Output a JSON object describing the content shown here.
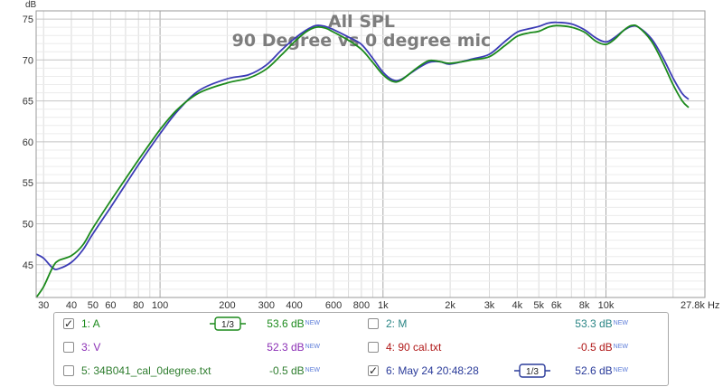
{
  "chart_data": {
    "type": "line",
    "title": "All SPL",
    "subtitle": "90 Degree vs 0 degree mic",
    "ylabel": "dB",
    "xunit": "Hz",
    "xscale": "log",
    "xlim": [
      27.8,
      27800
    ],
    "ylim": [
      41,
      76
    ],
    "grid": true,
    "x_ticks": [
      {
        "value": 30,
        "label": "30"
      },
      {
        "value": 40,
        "label": "40"
      },
      {
        "value": 50,
        "label": "50"
      },
      {
        "value": 60,
        "label": "60"
      },
      {
        "value": 80,
        "label": "80"
      },
      {
        "value": 100,
        "label": "100"
      },
      {
        "value": 200,
        "label": "200"
      },
      {
        "value": 300,
        "label": "300"
      },
      {
        "value": 400,
        "label": "400"
      },
      {
        "value": 600,
        "label": "600"
      },
      {
        "value": 800,
        "label": "800"
      },
      {
        "value": 1000,
        "label": "1k"
      },
      {
        "value": 2000,
        "label": "2k"
      },
      {
        "value": 3000,
        "label": "3k"
      },
      {
        "value": 4000,
        "label": "4k"
      },
      {
        "value": 5000,
        "label": "5k"
      },
      {
        "value": 6000,
        "label": "6k"
      },
      {
        "value": 8000,
        "label": "8k"
      },
      {
        "value": 10000,
        "label": "10k"
      },
      {
        "value": 27800,
        "label": "27.8k Hz"
      }
    ],
    "y_ticks": [
      {
        "value": 45,
        "label": "45"
      },
      {
        "value": 50,
        "label": "50"
      },
      {
        "value": 55,
        "label": "55"
      },
      {
        "value": 60,
        "label": "60"
      },
      {
        "value": 65,
        "label": "65"
      },
      {
        "value": 70,
        "label": "70"
      },
      {
        "value": 75,
        "label": "75"
      }
    ],
    "series": [
      {
        "name": "May 24 20:48:28",
        "color": "#3b3bb5",
        "points": [
          [
            27.8,
            46.3
          ],
          [
            30,
            45.8
          ],
          [
            33,
            44.6
          ],
          [
            35,
            44.5
          ],
          [
            40,
            45.3
          ],
          [
            45,
            46.8
          ],
          [
            50,
            48.8
          ],
          [
            60,
            52.0
          ],
          [
            70,
            54.8
          ],
          [
            80,
            57.2
          ],
          [
            100,
            61.0
          ],
          [
            120,
            63.8
          ],
          [
            150,
            66.3
          ],
          [
            200,
            67.7
          ],
          [
            250,
            68.2
          ],
          [
            300,
            69.4
          ],
          [
            350,
            71.2
          ],
          [
            400,
            72.6
          ],
          [
            450,
            73.6
          ],
          [
            500,
            74.2
          ],
          [
            550,
            74.1
          ],
          [
            600,
            73.7
          ],
          [
            700,
            72.8
          ],
          [
            800,
            71.9
          ],
          [
            900,
            70.2
          ],
          [
            1000,
            68.5
          ],
          [
            1100,
            67.6
          ],
          [
            1200,
            67.6
          ],
          [
            1400,
            68.8
          ],
          [
            1600,
            69.7
          ],
          [
            1800,
            69.8
          ],
          [
            2000,
            69.5
          ],
          [
            2500,
            70.1
          ],
          [
            3000,
            70.7
          ],
          [
            3500,
            72.2
          ],
          [
            4000,
            73.4
          ],
          [
            4500,
            73.8
          ],
          [
            5000,
            74.1
          ],
          [
            5500,
            74.5
          ],
          [
            6000,
            74.6
          ],
          [
            7000,
            74.4
          ],
          [
            8000,
            73.7
          ],
          [
            9000,
            72.7
          ],
          [
            10000,
            72.2
          ],
          [
            11000,
            72.8
          ],
          [
            12000,
            73.6
          ],
          [
            13000,
            74.1
          ],
          [
            14000,
            74.0
          ],
          [
            16000,
            72.6
          ],
          [
            18000,
            70.3
          ],
          [
            20000,
            67.8
          ],
          [
            22000,
            65.9
          ],
          [
            23500,
            65.2
          ]
        ]
      },
      {
        "name": "A",
        "color": "#1c8a1c",
        "points": [
          [
            27.8,
            41.0
          ],
          [
            30,
            42.3
          ],
          [
            33,
            44.7
          ],
          [
            35,
            45.5
          ],
          [
            40,
            46.1
          ],
          [
            45,
            47.4
          ],
          [
            50,
            49.5
          ],
          [
            60,
            52.8
          ],
          [
            70,
            55.5
          ],
          [
            80,
            57.8
          ],
          [
            100,
            61.5
          ],
          [
            120,
            64.0
          ],
          [
            150,
            66.0
          ],
          [
            200,
            67.2
          ],
          [
            250,
            67.8
          ],
          [
            300,
            68.9
          ],
          [
            350,
            70.6
          ],
          [
            400,
            72.2
          ],
          [
            450,
            73.4
          ],
          [
            500,
            74.0
          ],
          [
            550,
            73.9
          ],
          [
            600,
            73.4
          ],
          [
            700,
            72.4
          ],
          [
            800,
            71.3
          ],
          [
            900,
            69.7
          ],
          [
            1000,
            68.2
          ],
          [
            1100,
            67.4
          ],
          [
            1200,
            67.5
          ],
          [
            1400,
            68.9
          ],
          [
            1600,
            69.9
          ],
          [
            1800,
            69.8
          ],
          [
            2000,
            69.6
          ],
          [
            2500,
            70.0
          ],
          [
            3000,
            70.4
          ],
          [
            3500,
            71.7
          ],
          [
            4000,
            72.9
          ],
          [
            4500,
            73.3
          ],
          [
            5000,
            73.5
          ],
          [
            5500,
            74.0
          ],
          [
            6000,
            74.2
          ],
          [
            7000,
            74.0
          ],
          [
            8000,
            73.4
          ],
          [
            9000,
            72.3
          ],
          [
            10000,
            71.9
          ],
          [
            11000,
            72.6
          ],
          [
            12000,
            73.6
          ],
          [
            13000,
            74.2
          ],
          [
            14000,
            74.0
          ],
          [
            16000,
            72.3
          ],
          [
            18000,
            69.7
          ],
          [
            20000,
            67.0
          ],
          [
            22000,
            65.0
          ],
          [
            23500,
            64.2
          ]
        ]
      }
    ]
  },
  "legend": {
    "entries": [
      {
        "index": "1: A",
        "checked": true,
        "has_smoothing": true,
        "smoothing": "1/3",
        "value": "53.6 dB",
        "badge": "NEW",
        "color": "#1c8a1c"
      },
      {
        "index": "2: M",
        "checked": false,
        "has_smoothing": false,
        "smoothing": "",
        "value": "53.3 dB",
        "badge": "NEW",
        "color": "#2a8585"
      },
      {
        "index": "3: V",
        "checked": false,
        "has_smoothing": false,
        "smoothing": "",
        "value": "52.3 dB",
        "badge": "NEW",
        "color": "#8b2fb5"
      },
      {
        "index": "4: 90 cal.txt",
        "checked": false,
        "has_smoothing": false,
        "smoothing": "",
        "value": "-0.5 dB",
        "badge": "NEW",
        "color": "#b01818"
      },
      {
        "index": "5: 34B041_cal_0degree.txt",
        "checked": false,
        "has_smoothing": false,
        "smoothing": "",
        "value": "-0.5 dB",
        "badge": "NEW",
        "color": "#2e7d2e"
      },
      {
        "index": "6: May 24 20:48:28",
        "checked": true,
        "has_smoothing": true,
        "smoothing": "1/3",
        "value": "52.6 dB",
        "badge": "NEW",
        "color": "#2a3b9a"
      }
    ]
  }
}
